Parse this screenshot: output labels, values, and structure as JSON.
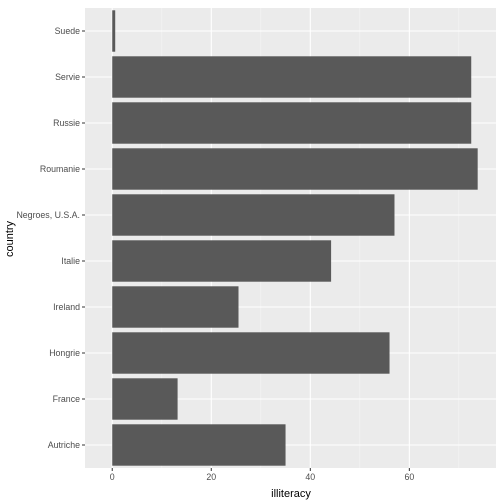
{
  "chart_data": {
    "type": "bar",
    "orientation": "horizontal",
    "categories": [
      "Suede",
      "Servie",
      "Russie",
      "Roumanie",
      "Negroes, U.S.A.",
      "Italie",
      "Ireland",
      "Hongrie",
      "France",
      "Autriche"
    ],
    "values": [
      0.6,
      72.5,
      72.5,
      73.8,
      57.0,
      44.2,
      25.5,
      56.0,
      13.2,
      35.0
    ],
    "xlabel": "illiteracy",
    "ylabel": "country",
    "xlim": [
      -5.5,
      77.5
    ],
    "xticks": [
      0,
      20,
      40,
      60
    ],
    "grid": true,
    "colors": {
      "panel": "#ebebeb",
      "bar": "#595959",
      "grid_major": "#ffffff",
      "grid_minor": "#f5f5f5"
    }
  }
}
